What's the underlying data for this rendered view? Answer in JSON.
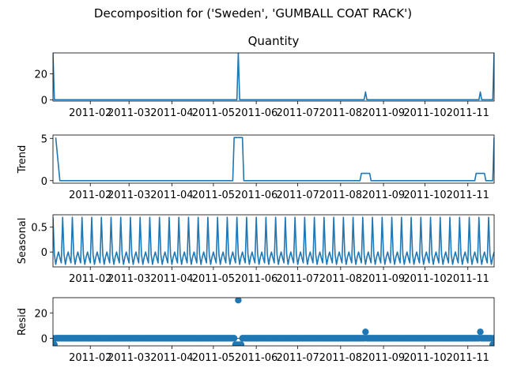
{
  "figure": {
    "suptitle": "Decomposition for ('Sweden', 'GUMBALL COAT RACK')"
  },
  "colors": {
    "series": "#1f77b4",
    "axes": "#000000"
  },
  "x_ticks": [
    "2011-02",
    "2011-03",
    "2011-04",
    "2011-05",
    "2011-06",
    "2011-07",
    "2011-08",
    "2011-09",
    "2011-10",
    "2011-11"
  ],
  "chart_data": [
    {
      "type": "line",
      "title": "Quantity",
      "ylabel": "",
      "x_range": [
        "2011-01-05",
        "2011-11-20"
      ],
      "ylim": [
        -1,
        36
      ],
      "yticks": [
        0,
        20
      ],
      "grid": false,
      "series": [
        {
          "points": [
            [
              "2011-01-05",
              36
            ],
            [
              "2011-01-06",
              0
            ],
            [
              "2011-05-18",
              0
            ],
            [
              "2011-05-19",
              36
            ],
            [
              "2011-05-20",
              0
            ],
            [
              "2011-08-18",
              0
            ],
            [
              "2011-08-19",
              6
            ],
            [
              "2011-08-20",
              0
            ],
            [
              "2011-11-09",
              0
            ],
            [
              "2011-11-10",
              6
            ],
            [
              "2011-11-11",
              0
            ],
            [
              "2011-11-19",
              0
            ],
            [
              "2011-11-20",
              36
            ]
          ]
        }
      ]
    },
    {
      "type": "line",
      "title": "",
      "ylabel": "Trend",
      "x_range": [
        "2011-01-05",
        "2011-11-20"
      ],
      "ylim": [
        -0.3,
        5.4
      ],
      "yticks": [
        0,
        5
      ],
      "grid": false,
      "series": [
        {
          "points": [
            [
              "2011-01-07",
              5.1
            ],
            [
              "2011-01-10",
              0
            ],
            [
              "2011-05-15",
              0
            ],
            [
              "2011-05-16",
              5.1
            ],
            [
              "2011-05-22",
              5.1
            ],
            [
              "2011-05-23",
              0
            ],
            [
              "2011-08-15",
              0
            ],
            [
              "2011-08-16",
              0.86
            ],
            [
              "2011-08-22",
              0.86
            ],
            [
              "2011-08-23",
              0
            ],
            [
              "2011-11-06",
              0
            ],
            [
              "2011-11-07",
              0.86
            ],
            [
              "2011-11-13",
              0.86
            ],
            [
              "2011-11-14",
              0
            ],
            [
              "2011-11-19",
              0
            ],
            [
              "2011-11-20",
              5.1
            ]
          ]
        }
      ]
    },
    {
      "type": "line",
      "title": "",
      "ylabel": "Seasonal",
      "x_range": [
        "2011-01-05",
        "2011-11-20"
      ],
      "ylim": [
        -0.3,
        0.75
      ],
      "yticks": [
        0.0,
        0.5
      ],
      "grid": false,
      "period_days": 7,
      "pattern": [
        0.7,
        -0.05,
        -0.25,
        -0.1,
        0.0,
        -0.12,
        -0.22
      ],
      "start": "2011-01-05",
      "end": "2011-11-20"
    },
    {
      "type": "scatter",
      "title": "",
      "ylabel": "Resid",
      "x_range": [
        "2011-01-05",
        "2011-11-20"
      ],
      "ylim": [
        -6,
        32
      ],
      "yticks": [
        0,
        20
      ],
      "grid": false,
      "baseline": 0,
      "start": "2011-01-05",
      "end": "2011-11-20",
      "baseline_points": [
        [
          "2011-01-05",
          0
        ],
        [
          "2011-11-20",
          0
        ]
      ],
      "outliers": [
        [
          "2011-01-06",
          -5
        ],
        [
          "2011-05-17",
          -5
        ],
        [
          "2011-05-18",
          -5
        ],
        [
          "2011-05-19",
          30
        ],
        [
          "2011-05-20",
          -5
        ],
        [
          "2011-05-21",
          -5
        ],
        [
          "2011-08-19",
          5
        ],
        [
          "2011-11-10",
          5
        ],
        [
          "2011-11-19",
          -5
        ]
      ]
    }
  ]
}
